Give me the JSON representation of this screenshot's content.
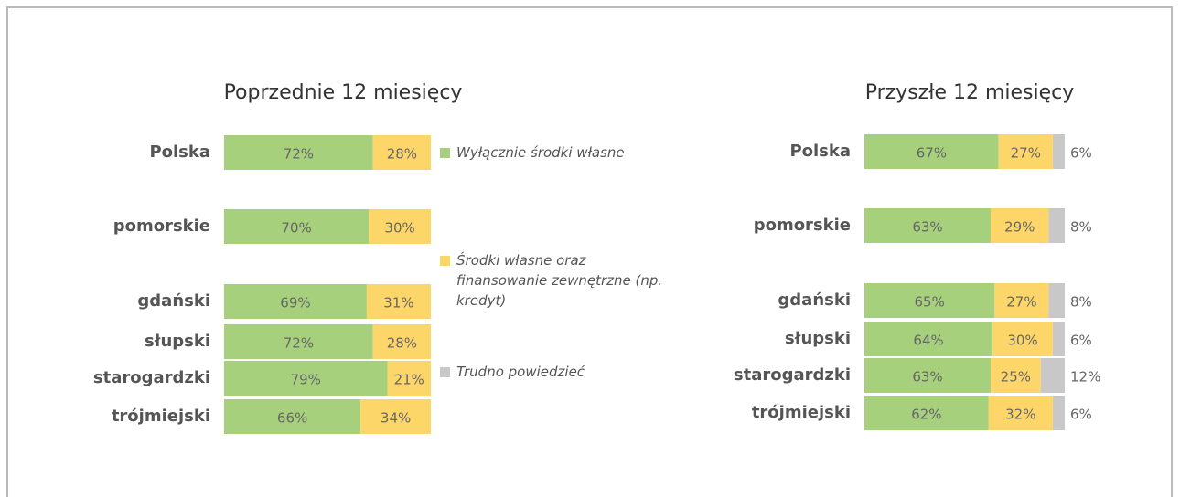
{
  "chart_data": [
    {
      "type": "stacked-bar",
      "title": "Poprzednie 12 miesięcy",
      "categories": [
        "Polska",
        "pomorskie",
        "gdański",
        "słupski",
        "starogardzki",
        "trójmiejski"
      ],
      "xlim": [
        0,
        100
      ],
      "series": [
        {
          "color": "#a6d07c",
          "values": [
            72,
            70,
            69,
            72,
            79,
            66
          ],
          "value_labels": [
            "72%",
            "70%",
            "69%",
            "72%",
            "79%",
            "66%"
          ]
        },
        {
          "color": "#fdd66a",
          "values": [
            28,
            30,
            31,
            28,
            21,
            34
          ],
          "value_labels": [
            "28%",
            "30%",
            "31%",
            "28%",
            "21%",
            "34%"
          ]
        }
      ]
    },
    {
      "type": "stacked-bar",
      "title": "Przyszłe 12 miesięcy",
      "categories": [
        "Polska",
        "pomorskie",
        "gdański",
        "słupski",
        "starogardzki",
        "trójmiejski"
      ],
      "xlim": [
        0,
        100
      ],
      "series": [
        {
          "name": "Wyłącznie środki własne",
          "color": "#a6d07c",
          "values": [
            67,
            63,
            65,
            64,
            63,
            62
          ],
          "value_labels": [
            "67%",
            "63%",
            "65%",
            "64%",
            "63%",
            "62%"
          ]
        },
        {
          "name": "Środki własne oraz finansowanie zewnętrzne (np. kredyt)",
          "color": "#fdd66a",
          "values": [
            27,
            29,
            27,
            30,
            25,
            32
          ],
          "value_labels": [
            "27%",
            "29%",
            "27%",
            "30%",
            "25%",
            "32%"
          ]
        },
        {
          "name": "Trudno powiedzieć",
          "color": "#c8c8c8",
          "values": [
            6,
            8,
            8,
            6,
            12,
            6
          ],
          "value_labels": [
            "6%",
            "8%",
            "8%",
            "6%",
            "12%",
            "6%"
          ]
        }
      ]
    }
  ]
}
